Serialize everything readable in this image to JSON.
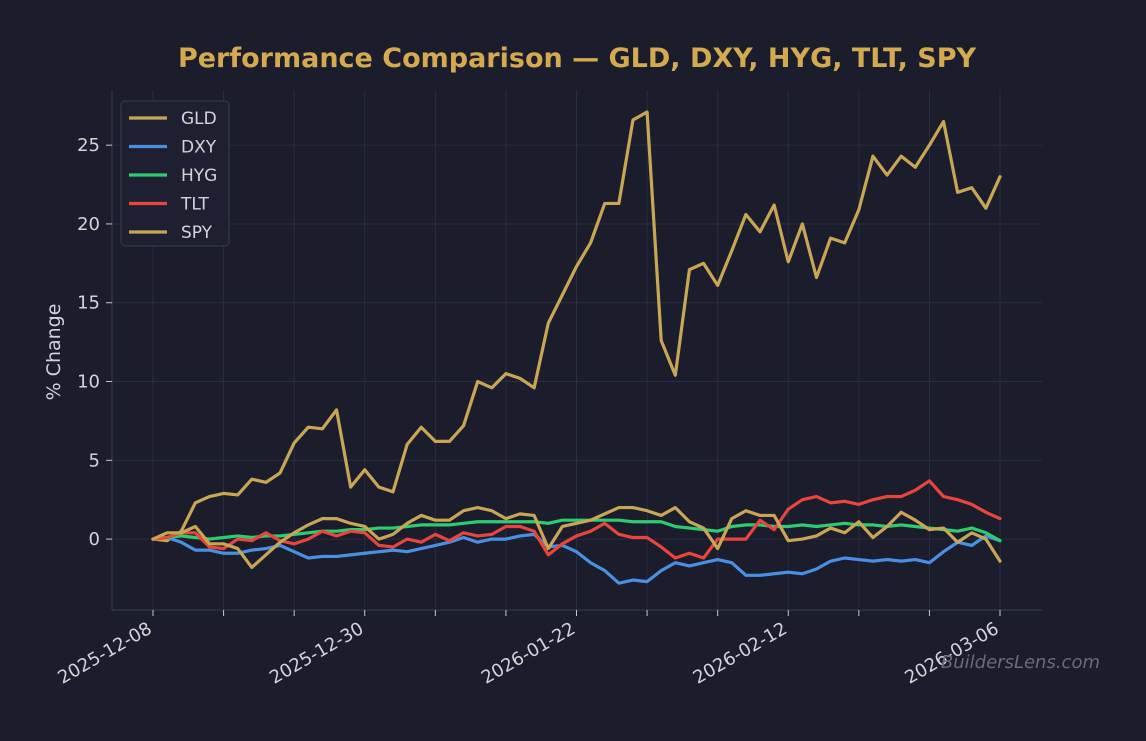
{
  "chart_data": {
    "type": "line",
    "title": "Performance Comparison — GLD, DXY, HYG, TLT, SPY",
    "ylabel": "% Change",
    "xlabel": "",
    "ylim": [
      -4.5,
      28.5
    ],
    "yticks": [
      0,
      5,
      10,
      15,
      20,
      25
    ],
    "x_count": 61,
    "xtick_positions": [
      0,
      15,
      30,
      45,
      60
    ],
    "xtick_labels": [
      "2025-12-08",
      "2025-12-30",
      "2026-01-22",
      "2026-02-12",
      "2026-03-06"
    ],
    "grid": true,
    "legend_position": "upper-left",
    "title_color": "#d4aa50",
    "series": [
      {
        "name": "GLD",
        "color": "#c9a654",
        "values": [
          0,
          -0.1,
          0.5,
          2.3,
          2.7,
          2.9,
          2.8,
          3.8,
          3.6,
          4.2,
          6.1,
          7.1,
          7.0,
          8.2,
          3.3,
          4.4,
          3.3,
          3.0,
          6.0,
          7.1,
          6.2,
          6.2,
          7.2,
          10.0,
          9.6,
          10.5,
          10.2,
          9.6,
          13.7,
          15.5,
          17.3,
          18.8,
          21.3,
          21.3,
          26.6,
          27.1,
          12.6,
          10.4,
          17.1,
          17.5,
          16.1,
          18.3,
          20.6,
          19.5,
          21.2,
          17.6,
          20.0,
          16.6,
          19.1,
          18.8,
          20.9,
          24.3,
          23.1,
          24.3,
          23.6,
          25.0,
          26.5,
          22.0,
          22.3,
          21.0,
          23.0
        ]
      },
      {
        "name": "DXY",
        "color": "#4a90e2",
        "values": [
          0,
          0.1,
          -0.2,
          -0.7,
          -0.7,
          -0.9,
          -0.9,
          -0.7,
          -0.6,
          -0.4,
          -0.8,
          -1.2,
          -1.1,
          -1.1,
          -1.0,
          -0.9,
          -0.8,
          -0.7,
          -0.8,
          -0.6,
          -0.4,
          -0.2,
          0.1,
          -0.2,
          0.0,
          0.0,
          0.2,
          0.3,
          -0.5,
          -0.4,
          -0.8,
          -1.5,
          -2.0,
          -2.8,
          -2.6,
          -2.7,
          -2.0,
          -1.5,
          -1.7,
          -1.5,
          -1.3,
          -1.5,
          -2.3,
          -2.3,
          -2.2,
          -2.1,
          -2.2,
          -1.9,
          -1.4,
          -1.2,
          -1.3,
          -1.4,
          -1.3,
          -1.4,
          -1.3,
          -1.5,
          -0.8,
          -0.2,
          -0.4,
          0.2,
          -0.1
        ]
      },
      {
        "name": "HYG",
        "color": "#2ecc71",
        "values": [
          0,
          0.1,
          0.2,
          0.1,
          0.0,
          0.1,
          0.2,
          0.1,
          0.2,
          0.2,
          0.3,
          0.4,
          0.5,
          0.5,
          0.6,
          0.6,
          0.7,
          0.7,
          0.8,
          0.9,
          0.9,
          0.9,
          1.0,
          1.1,
          1.1,
          1.1,
          1.1,
          1.1,
          1.0,
          1.2,
          1.2,
          1.2,
          1.2,
          1.2,
          1.1,
          1.1,
          1.1,
          0.8,
          0.7,
          0.6,
          0.5,
          0.8,
          0.9,
          0.9,
          0.8,
          0.8,
          0.9,
          0.8,
          0.9,
          1.0,
          0.9,
          0.9,
          0.8,
          0.9,
          0.8,
          0.7,
          0.6,
          0.5,
          0.7,
          0.4,
          -0.1
        ]
      },
      {
        "name": "TLT",
        "color": "#e8453c",
        "values": [
          0,
          0.1,
          0.4,
          0.4,
          -0.5,
          -0.6,
          0.0,
          -0.1,
          0.4,
          -0.1,
          -0.3,
          0.0,
          0.5,
          0.2,
          0.5,
          0.4,
          -0.4,
          -0.5,
          0.0,
          -0.2,
          0.3,
          -0.1,
          0.4,
          0.2,
          0.3,
          0.8,
          0.8,
          0.5,
          -1.0,
          -0.3,
          0.2,
          0.5,
          1.0,
          0.3,
          0.1,
          0.1,
          -0.5,
          -1.2,
          -0.9,
          -1.2,
          0.0,
          0.0,
          0.0,
          1.2,
          0.6,
          1.9,
          2.5,
          2.7,
          2.3,
          2.4,
          2.2,
          2.5,
          2.7,
          2.7,
          3.1,
          3.7,
          2.7,
          2.5,
          2.2,
          1.7,
          1.3
        ]
      },
      {
        "name": "SPY",
        "color": "#c9a654",
        "values": [
          0,
          0.4,
          0.4,
          0.8,
          -0.3,
          -0.3,
          -0.6,
          -1.8,
          -1.0,
          -0.2,
          0.4,
          0.9,
          1.3,
          1.3,
          1.0,
          0.8,
          0.0,
          0.3,
          1.0,
          1.5,
          1.2,
          1.2,
          1.8,
          2.0,
          1.8,
          1.3,
          1.6,
          1.5,
          -0.6,
          0.8,
          1.0,
          1.2,
          1.6,
          2.0,
          2.0,
          1.8,
          1.5,
          2.0,
          1.1,
          0.7,
          -0.6,
          1.3,
          1.8,
          1.5,
          1.5,
          -0.1,
          0.0,
          0.2,
          0.7,
          0.4,
          1.1,
          0.1,
          0.8,
          1.7,
          1.2,
          0.6,
          0.7,
          -0.2,
          0.4,
          0.0,
          -1.4
        ]
      }
    ]
  },
  "watermark": "BuildersLens.com"
}
